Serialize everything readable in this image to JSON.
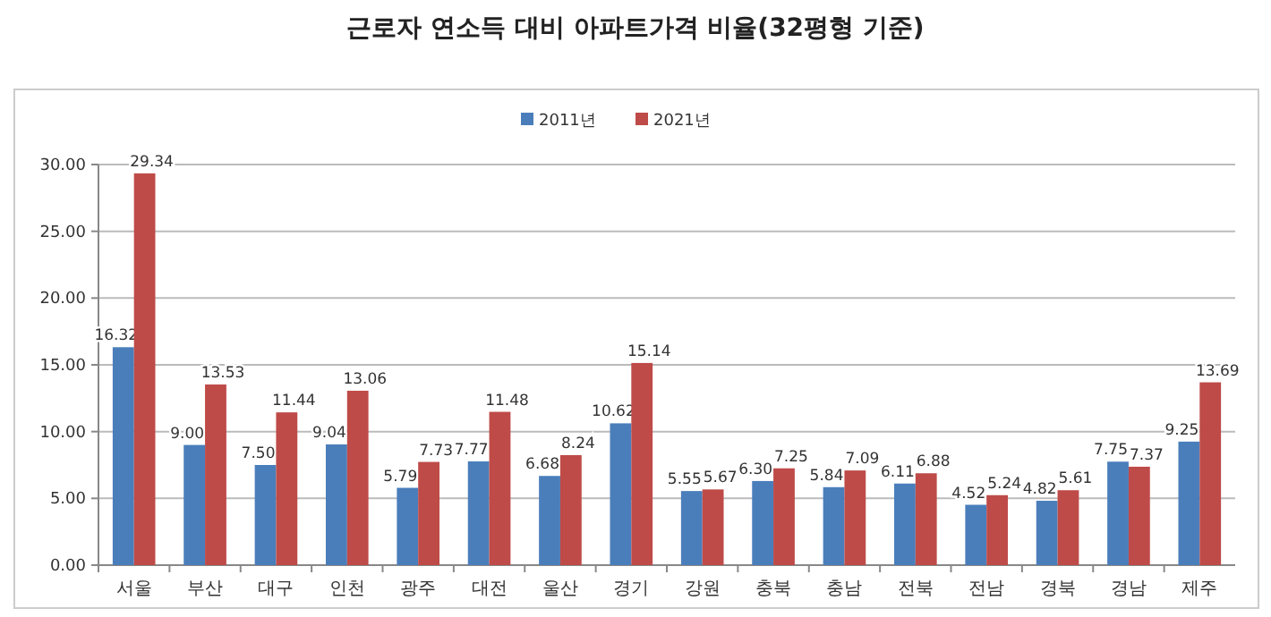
{
  "chart_data": {
    "type": "bar",
    "title": "근로자 연소득 대비 아파트가격 비율(32평형 기준)",
    "categories": [
      "서울",
      "부산",
      "대구",
      "인천",
      "광주",
      "대전",
      "울산",
      "경기",
      "강원",
      "충북",
      "충남",
      "전북",
      "전남",
      "경북",
      "경남",
      "제주"
    ],
    "series": [
      {
        "name": "2011년",
        "color": "#4a7ebb",
        "values": [
          16.32,
          9.0,
          7.5,
          9.04,
          5.79,
          7.77,
          6.68,
          10.62,
          5.55,
          6.3,
          5.84,
          6.11,
          4.52,
          4.82,
          7.75,
          9.25
        ],
        "value_labels": [
          "16.32",
          "9.00",
          "7.50",
          "9.04",
          "5.79",
          "7.77",
          "6.68",
          "10.62",
          "5.55",
          "6.30",
          "5.84",
          "6.11",
          "4.52",
          "4.82",
          "7.75",
          "9.25"
        ]
      },
      {
        "name": "2021년",
        "color": "#be4b48",
        "values": [
          29.34,
          13.53,
          11.44,
          13.06,
          7.73,
          11.48,
          8.24,
          15.14,
          5.67,
          7.25,
          7.09,
          6.88,
          5.24,
          5.61,
          7.37,
          13.69
        ],
        "value_labels": [
          "29.34",
          "13.53",
          "11.44",
          "13.06",
          "7.73",
          "11.48",
          "8.24",
          "15.14",
          "5.67",
          "7.25",
          "7.09",
          "6.88",
          "5.24",
          "5.61",
          "7.37",
          "13.69"
        ]
      }
    ],
    "ylim": [
      0,
      30
    ],
    "yticks": [
      {
        "value": 0,
        "label": "0.00"
      },
      {
        "value": 5,
        "label": "5.00"
      },
      {
        "value": 10,
        "label": "10.00"
      },
      {
        "value": 15,
        "label": "15.00"
      },
      {
        "value": 20,
        "label": "20.00"
      },
      {
        "value": 25,
        "label": "25.00"
      },
      {
        "value": 30,
        "label": "30.00"
      }
    ],
    "grid": "y",
    "legend": "top"
  }
}
